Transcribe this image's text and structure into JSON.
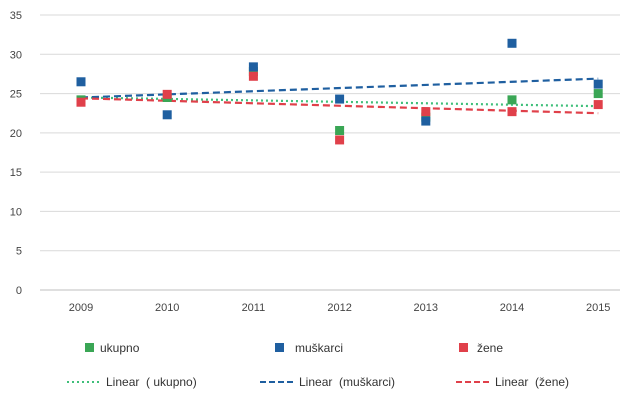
{
  "chart_data": {
    "type": "scatter",
    "categories": [
      "2009",
      "2010",
      "2011",
      "2012",
      "2013",
      "2014",
      "2015"
    ],
    "ylim": [
      0,
      35
    ],
    "yticks": [
      0,
      5,
      10,
      15,
      20,
      25,
      30,
      35
    ],
    "grid": true,
    "legend_position": "bottom",
    "series": [
      {
        "name": "ukupno",
        "color": "#3aa655",
        "values": [
          24.2,
          24.5,
          27.8,
          20.3,
          22.0,
          24.2,
          25.0
        ]
      },
      {
        "name": "muškarci",
        "color": "#1f5fa0",
        "values": [
          26.5,
          22.3,
          28.4,
          24.3,
          21.5,
          31.4,
          26.2
        ]
      },
      {
        "name": "žene",
        "color": "#e0404a",
        "values": [
          23.9,
          24.9,
          27.2,
          19.1,
          22.7,
          22.7,
          23.6
        ]
      }
    ],
    "trendlines": [
      {
        "name": "Linear  ( ukupno)",
        "color": "#3fbf7a",
        "dash": "dotted",
        "start": 24.5,
        "end": 23.4
      },
      {
        "name": "Linear  (muškarci)",
        "color": "#1f5fa0",
        "dash": "dashed",
        "start": 24.5,
        "end": 26.9
      },
      {
        "name": "Linear  (žene)",
        "color": "#e0404a",
        "dash": "dashed",
        "start": 24.4,
        "end": 22.5
      }
    ]
  }
}
